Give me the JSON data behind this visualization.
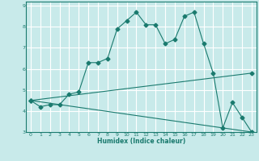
{
  "xlabel": "Humidex (Indice chaleur)",
  "bg_color": "#c8eaea",
  "line_color": "#1a7a6e",
  "grid_color": "#ffffff",
  "xlim": [
    -0.5,
    23.5
  ],
  "ylim": [
    3,
    9.2
  ],
  "xticks": [
    0,
    1,
    2,
    3,
    4,
    5,
    6,
    7,
    8,
    9,
    10,
    11,
    12,
    13,
    14,
    15,
    16,
    17,
    18,
    19,
    20,
    21,
    22,
    23
  ],
  "yticks": [
    3,
    4,
    5,
    6,
    7,
    8,
    9
  ],
  "line1_x": [
    0,
    1,
    2,
    3,
    4,
    5,
    6,
    7,
    8,
    9,
    10,
    11,
    12,
    13,
    14,
    15,
    16,
    17,
    18,
    19,
    20,
    21,
    22,
    23
  ],
  "line1_y": [
    4.5,
    4.2,
    4.3,
    4.3,
    4.8,
    4.9,
    6.3,
    6.3,
    6.5,
    7.9,
    8.3,
    8.7,
    8.1,
    8.1,
    7.2,
    7.4,
    8.5,
    8.7,
    7.2,
    5.8,
    3.2,
    4.4,
    3.7,
    3.0
  ],
  "line2_x": [
    0,
    23
  ],
  "line2_y": [
    4.5,
    3.0
  ],
  "line3_x": [
    0,
    23
  ],
  "line3_y": [
    4.5,
    5.8
  ],
  "markersize": 2.5
}
